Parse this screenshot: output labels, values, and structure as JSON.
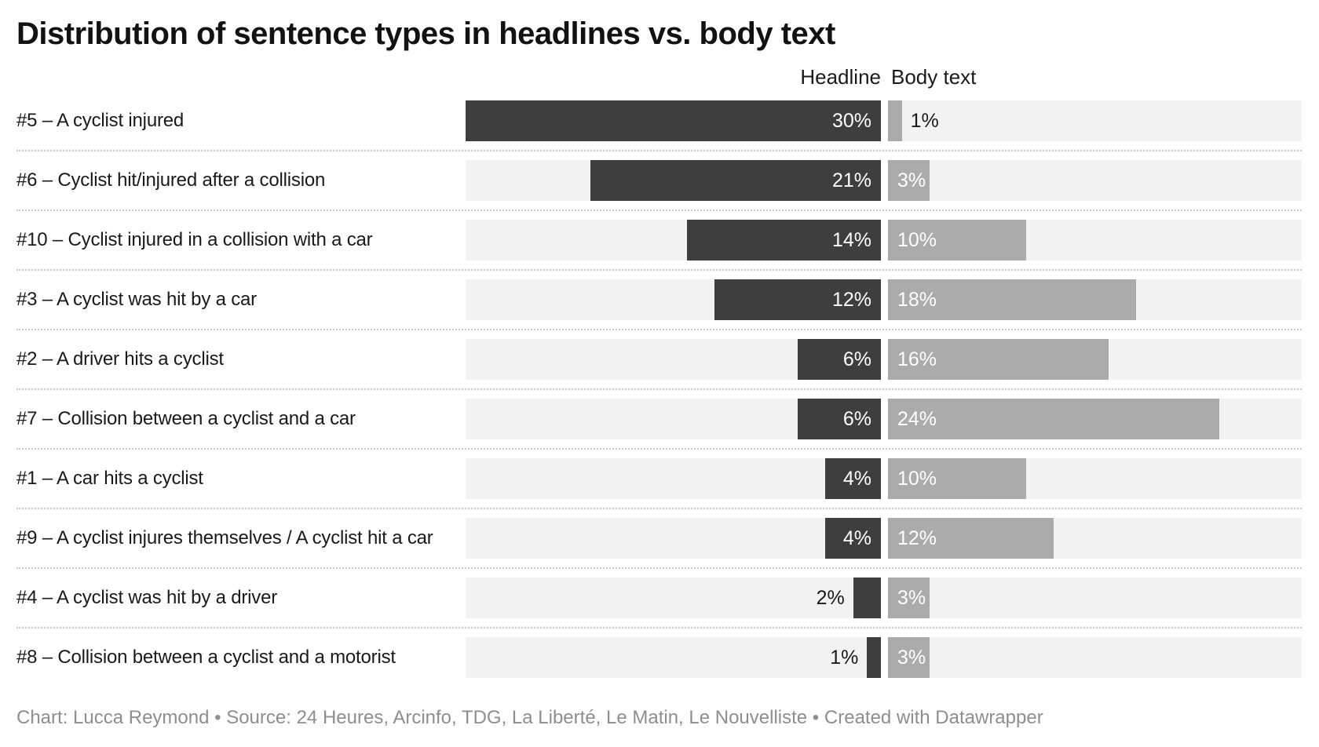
{
  "title": "Distribution of sentence types in headlines vs. body text",
  "legend": {
    "headline": "Headline",
    "body": "Body text"
  },
  "footer": {
    "separator": " • ",
    "parts": [
      "Chart: Lucca Reymond",
      "Source: 24 Heures, Arcinfo, TDG, La Liberté, Le Matin, Le Nouvelliste",
      "Created with Datawrapper"
    ]
  },
  "colors": {
    "headline_bar": "#3e3e3e",
    "body_bar": "#ababab",
    "track": "#f2f2f2",
    "separator": "#c9c9c9",
    "title_text": "#121212",
    "label_text": "#1a1a1a",
    "inside_value_label": "#ffffff",
    "footer_text": "#8e8e8e"
  },
  "chart_data": {
    "type": "bar",
    "variant": "horizontal-back-to-back",
    "title": "Distribution of sentence types in headlines vs. body text",
    "categories": [
      "#5 – A cyclist injured",
      "#6 – Cyclist hit/injured after a collision",
      "#10 – Cyclist injured in a collision with a car",
      "#3 – A cyclist was hit by a car",
      "#2 – A driver hits a cyclist",
      "#7 – Collision between a cyclist and a car",
      "#1 – A car hits a cyclist",
      "#9 – A cyclist injures themselves / A cyclist hit a car",
      "#4 – A cyclist was hit by a driver",
      "#8 – Collision between a cyclist and a motorist"
    ],
    "series": [
      {
        "name": "Headline",
        "direction": "right-to-left",
        "values": [
          30,
          21,
          14,
          12,
          6,
          6,
          4,
          4,
          2,
          1
        ],
        "value_labels": [
          "30%",
          "21%",
          "14%",
          "12%",
          "6%",
          "6%",
          "4%",
          "4%",
          "2%",
          "1%"
        ]
      },
      {
        "name": "Body text",
        "direction": "left-to-right",
        "values": [
          1,
          3,
          10,
          18,
          16,
          24,
          10,
          12,
          3,
          3
        ],
        "value_labels": [
          "1%",
          "3%",
          "10%",
          "18%",
          "16%",
          "24%",
          "10%",
          "12%",
          "3%",
          "3%"
        ]
      }
    ],
    "axis_max": 30,
    "value_format": "percent",
    "grid": false,
    "legend_position": "top"
  }
}
